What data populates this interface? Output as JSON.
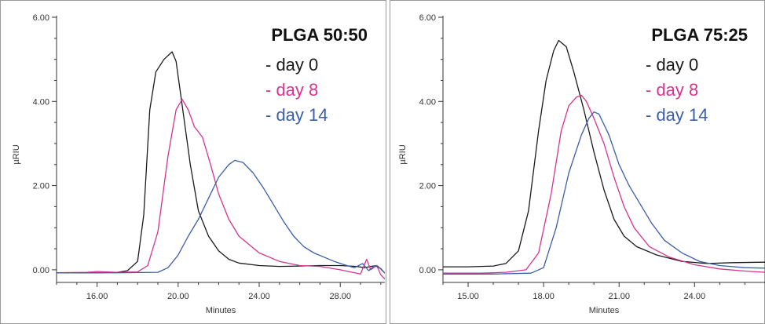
{
  "chart_data": [
    {
      "type": "line",
      "title": "PLGA 50:50",
      "xlabel": "Minutes",
      "ylabel": "µRIU",
      "xlim": [
        14.0,
        30.2
      ],
      "ylim": [
        -0.3,
        6.0
      ],
      "xticks": [
        16,
        20,
        24,
        28
      ],
      "xtick_labels": [
        "16.00",
        "20.00",
        "24.00",
        "28.00"
      ],
      "yticks": [
        0,
        2,
        4,
        6
      ],
      "ytick_labels": [
        "0.00",
        "2.00",
        "4.00",
        "6.00"
      ],
      "legend_position": "top-right",
      "series": [
        {
          "name": "- day 0",
          "color": "#1a1a1a",
          "points": [
            [
              14.0,
              -0.07
            ],
            [
              16.0,
              -0.07
            ],
            [
              17.0,
              -0.06
            ],
            [
              17.5,
              -0.02
            ],
            [
              18.0,
              0.2
            ],
            [
              18.3,
              1.3
            ],
            [
              18.6,
              3.8
            ],
            [
              18.9,
              4.7
            ],
            [
              19.3,
              5.0
            ],
            [
              19.7,
              5.18
            ],
            [
              19.9,
              4.95
            ],
            [
              20.2,
              3.9
            ],
            [
              20.6,
              2.5
            ],
            [
              21.0,
              1.4
            ],
            [
              21.5,
              0.8
            ],
            [
              22.0,
              0.45
            ],
            [
              22.5,
              0.25
            ],
            [
              23.0,
              0.16
            ],
            [
              24.0,
              0.1
            ],
            [
              25.0,
              0.08
            ],
            [
              26.0,
              0.09
            ],
            [
              27.0,
              0.1
            ],
            [
              28.0,
              0.1
            ],
            [
              28.8,
              0.08
            ],
            [
              29.2,
              0.05
            ],
            [
              29.5,
              0.08
            ],
            [
              29.8,
              0.1
            ],
            [
              30.0,
              0.02
            ],
            [
              30.2,
              -0.08
            ]
          ]
        },
        {
          "name": "- day 8",
          "color": "#d6338f",
          "points": [
            [
              14.0,
              -0.07
            ],
            [
              15.5,
              -0.06
            ],
            [
              16.0,
              -0.04
            ],
            [
              17.0,
              -0.06
            ],
            [
              18.0,
              -0.05
            ],
            [
              18.5,
              0.1
            ],
            [
              19.0,
              0.9
            ],
            [
              19.5,
              2.7
            ],
            [
              19.9,
              3.8
            ],
            [
              20.2,
              4.05
            ],
            [
              20.5,
              3.8
            ],
            [
              20.8,
              3.4
            ],
            [
              21.2,
              3.15
            ],
            [
              21.6,
              2.5
            ],
            [
              22.0,
              1.8
            ],
            [
              22.5,
              1.2
            ],
            [
              23.0,
              0.8
            ],
            [
              24.0,
              0.4
            ],
            [
              25.0,
              0.2
            ],
            [
              26.0,
              0.1
            ],
            [
              27.0,
              0.08
            ],
            [
              28.0,
              0.0
            ],
            [
              28.5,
              -0.05
            ],
            [
              29.0,
              -0.1
            ],
            [
              29.3,
              0.25
            ],
            [
              29.5,
              0.0
            ],
            [
              29.8,
              0.1
            ],
            [
              30.0,
              -0.12
            ],
            [
              30.2,
              -0.22
            ]
          ]
        },
        {
          "name": "- day 14",
          "color": "#3a5ea8",
          "points": [
            [
              14.0,
              -0.07
            ],
            [
              17.0,
              -0.07
            ],
            [
              19.0,
              -0.06
            ],
            [
              19.5,
              0.05
            ],
            [
              20.0,
              0.35
            ],
            [
              20.5,
              0.8
            ],
            [
              21.0,
              1.2
            ],
            [
              21.5,
              1.7
            ],
            [
              22.0,
              2.2
            ],
            [
              22.5,
              2.5
            ],
            [
              22.8,
              2.6
            ],
            [
              23.2,
              2.55
            ],
            [
              23.7,
              2.3
            ],
            [
              24.2,
              1.95
            ],
            [
              24.7,
              1.55
            ],
            [
              25.2,
              1.15
            ],
            [
              25.7,
              0.8
            ],
            [
              26.2,
              0.55
            ],
            [
              26.7,
              0.4
            ],
            [
              27.2,
              0.3
            ],
            [
              27.7,
              0.2
            ],
            [
              28.2,
              0.12
            ],
            [
              28.7,
              0.05
            ],
            [
              29.1,
              0.15
            ],
            [
              29.4,
              -0.02
            ],
            [
              29.7,
              0.1
            ],
            [
              30.0,
              0.03
            ],
            [
              30.2,
              -0.08
            ]
          ]
        }
      ]
    },
    {
      "type": "line",
      "title": "PLGA 75:25",
      "xlabel": "Minutes",
      "ylabel": "µRIU",
      "xlim": [
        14.0,
        26.8
      ],
      "ylim": [
        -0.3,
        6.0
      ],
      "xticks": [
        15,
        18,
        21,
        24
      ],
      "xtick_labels": [
        "15.00",
        "18.00",
        "21.00",
        "24.00"
      ],
      "yticks": [
        0,
        2,
        4,
        6
      ],
      "ytick_labels": [
        "0.00",
        "2.00",
        "4.00",
        "6.00"
      ],
      "legend_position": "top-right",
      "series": [
        {
          "name": "- day 0",
          "color": "#1a1a1a",
          "points": [
            [
              14.0,
              0.07
            ],
            [
              15.0,
              0.07
            ],
            [
              16.0,
              0.09
            ],
            [
              16.5,
              0.15
            ],
            [
              17.0,
              0.45
            ],
            [
              17.4,
              1.4
            ],
            [
              17.8,
              3.3
            ],
            [
              18.1,
              4.5
            ],
            [
              18.4,
              5.2
            ],
            [
              18.6,
              5.45
            ],
            [
              18.9,
              5.3
            ],
            [
              19.2,
              4.7
            ],
            [
              19.6,
              3.8
            ],
            [
              20.0,
              2.8
            ],
            [
              20.4,
              1.9
            ],
            [
              20.8,
              1.2
            ],
            [
              21.2,
              0.8
            ],
            [
              21.7,
              0.55
            ],
            [
              22.5,
              0.35
            ],
            [
              23.5,
              0.2
            ],
            [
              24.5,
              0.15
            ],
            [
              25.5,
              0.17
            ],
            [
              26.8,
              0.18
            ]
          ]
        },
        {
          "name": "- day 8",
          "color": "#d6338f",
          "points": [
            [
              14.0,
              -0.08
            ],
            [
              15.5,
              -0.08
            ],
            [
              16.5,
              -0.06
            ],
            [
              17.3,
              0.0
            ],
            [
              17.8,
              0.4
            ],
            [
              18.3,
              1.8
            ],
            [
              18.7,
              3.3
            ],
            [
              19.0,
              3.9
            ],
            [
              19.3,
              4.1
            ],
            [
              19.5,
              4.15
            ],
            [
              19.7,
              4.0
            ],
            [
              20.0,
              3.6
            ],
            [
              20.4,
              3.0
            ],
            [
              20.8,
              2.2
            ],
            [
              21.2,
              1.5
            ],
            [
              21.6,
              1.0
            ],
            [
              22.2,
              0.55
            ],
            [
              23.0,
              0.3
            ],
            [
              24.0,
              0.12
            ],
            [
              25.0,
              0.02
            ],
            [
              26.0,
              -0.03
            ],
            [
              26.8,
              -0.06
            ]
          ]
        },
        {
          "name": "- day 14",
          "color": "#3a5ea8",
          "points": [
            [
              14.0,
              -0.1
            ],
            [
              16.0,
              -0.1
            ],
            [
              17.5,
              -0.08
            ],
            [
              18.0,
              0.05
            ],
            [
              18.5,
              1.0
            ],
            [
              19.0,
              2.3
            ],
            [
              19.5,
              3.2
            ],
            [
              19.8,
              3.6
            ],
            [
              20.0,
              3.75
            ],
            [
              20.2,
              3.7
            ],
            [
              20.6,
              3.2
            ],
            [
              21.0,
              2.5
            ],
            [
              21.4,
              2.0
            ],
            [
              21.8,
              1.6
            ],
            [
              22.3,
              1.1
            ],
            [
              22.8,
              0.7
            ],
            [
              23.5,
              0.4
            ],
            [
              24.2,
              0.2
            ],
            [
              25.0,
              0.1
            ],
            [
              26.0,
              0.05
            ],
            [
              26.8,
              0.04
            ]
          ]
        }
      ]
    }
  ]
}
